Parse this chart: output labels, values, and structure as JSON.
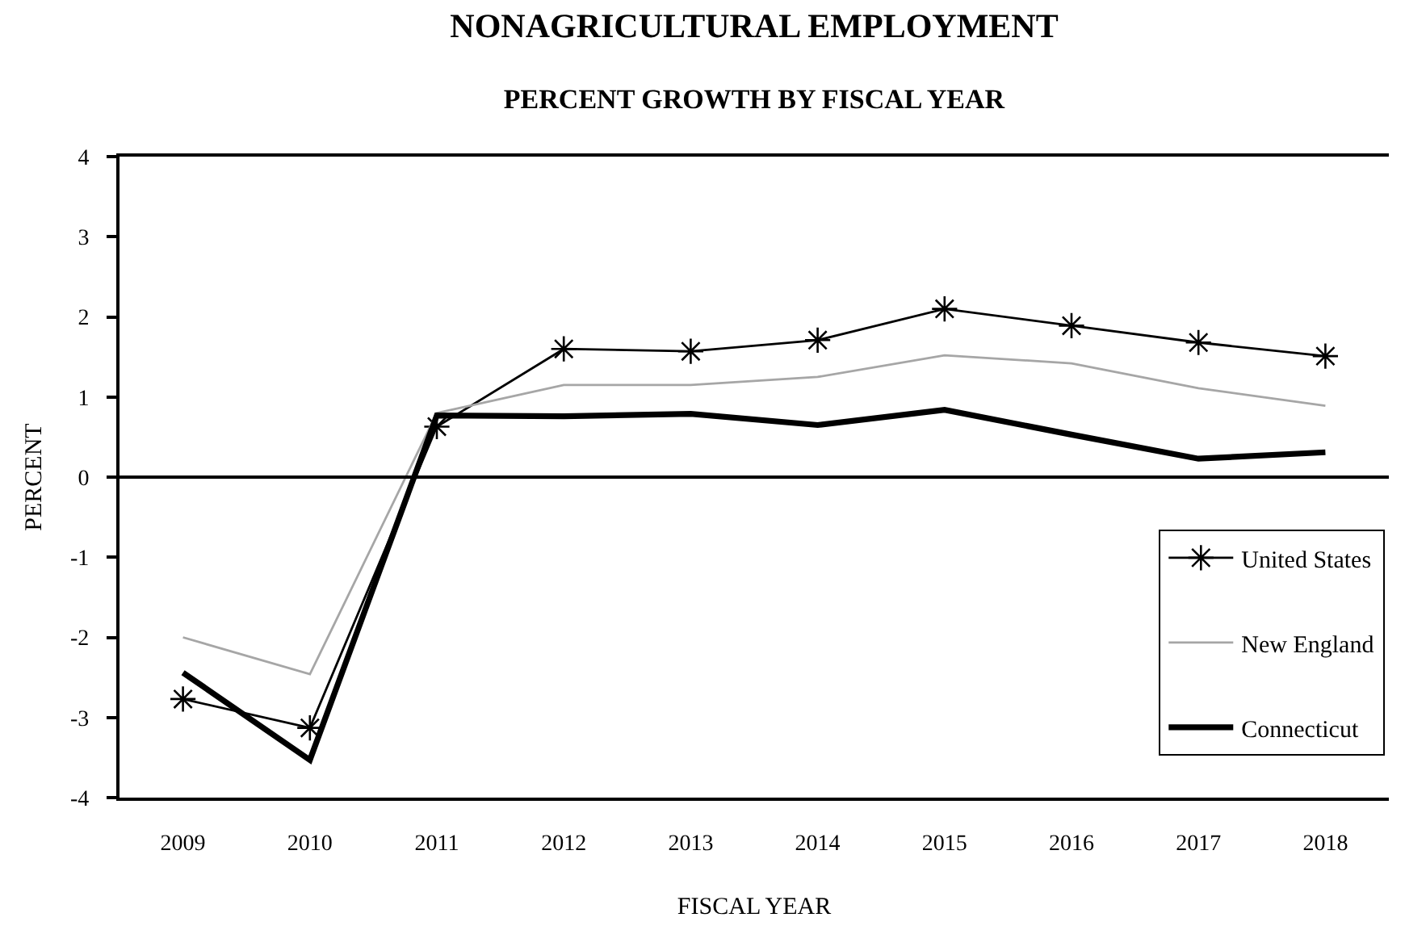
{
  "chart_data": {
    "type": "line",
    "title": "NONAGRICULTURAL EMPLOYMENT",
    "subtitle": "PERCENT GROWTH BY FISCAL YEAR",
    "xlabel": "FISCAL YEAR",
    "ylabel": "PERCENT",
    "categories": [
      "2009",
      "2010",
      "2011",
      "2012",
      "2013",
      "2014",
      "2015",
      "2016",
      "2017",
      "2018"
    ],
    "series": [
      {
        "name": "United States",
        "color": "#000000",
        "marker": "cross",
        "values": [
          -2.77,
          -3.13,
          0.63,
          1.6,
          1.57,
          1.71,
          2.1,
          1.89,
          1.68,
          1.51
        ]
      },
      {
        "name": "New England",
        "color": "#a6a6a6",
        "marker": "none",
        "values": [
          -2.0,
          -2.46,
          0.8,
          1.15,
          1.15,
          1.25,
          1.52,
          1.42,
          1.11,
          0.89
        ]
      },
      {
        "name": "Connecticut",
        "color": "#000000",
        "marker": "none",
        "values": [
          -2.44,
          -3.53,
          0.77,
          0.76,
          0.79,
          0.65,
          0.84,
          0.53,
          0.23,
          0.31
        ]
      }
    ],
    "ylim": [
      -4,
      4
    ],
    "yticks": [
      -4,
      -3,
      -2,
      -1,
      0,
      1,
      2,
      3,
      4
    ],
    "grid": false,
    "legend": "bottom right",
    "line_style": "solid",
    "ref_lines": [
      {
        "axis": "y",
        "value": 0,
        "color": "#000000"
      }
    ]
  }
}
